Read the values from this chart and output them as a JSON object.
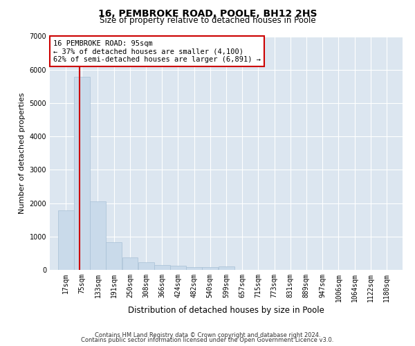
{
  "title": "16, PEMBROKE ROAD, POOLE, BH12 2HS",
  "subtitle": "Size of property relative to detached houses in Poole",
  "xlabel": "Distribution of detached houses by size in Poole",
  "ylabel": "Number of detached properties",
  "footnote1": "Contains HM Land Registry data © Crown copyright and database right 2024.",
  "footnote2": "Contains public sector information licensed under the Open Government Licence v3.0.",
  "annotation_title": "16 PEMBROKE ROAD: 95sqm",
  "annotation_line2": "← 37% of detached houses are smaller (4,100)",
  "annotation_line3": "62% of semi-detached houses are larger (6,891) →",
  "property_size": 95,
  "bar_color": "#c9daea",
  "bar_edge_color": "#a8c0d6",
  "property_line_color": "#cc0000",
  "annotation_box_color": "#ffffff",
  "annotation_box_edge": "#cc0000",
  "fig_bg_color": "#ffffff",
  "plot_bg_color": "#dce6f0",
  "grid_color": "#ffffff",
  "categories": [
    "17sqm",
    "75sqm",
    "133sqm",
    "191sqm",
    "250sqm",
    "308sqm",
    "366sqm",
    "424sqm",
    "482sqm",
    "540sqm",
    "599sqm",
    "657sqm",
    "715sqm",
    "773sqm",
    "831sqm",
    "889sqm",
    "947sqm",
    "1006sqm",
    "1064sqm",
    "1122sqm",
    "1180sqm"
  ],
  "bin_edges": [
    17,
    75,
    133,
    191,
    250,
    308,
    366,
    424,
    482,
    540,
    599,
    657,
    715,
    773,
    831,
    889,
    947,
    1006,
    1064,
    1122,
    1180
  ],
  "values": [
    1780,
    5780,
    2060,
    820,
    380,
    230,
    150,
    120,
    90,
    75,
    100,
    0,
    0,
    0,
    0,
    0,
    0,
    0,
    0,
    0,
    0
  ],
  "ylim": [
    0,
    7000
  ],
  "title_fontsize": 10,
  "subtitle_fontsize": 8.5,
  "ylabel_fontsize": 8,
  "xlabel_fontsize": 8.5,
  "tick_fontsize": 7,
  "annotation_fontsize": 7.5
}
